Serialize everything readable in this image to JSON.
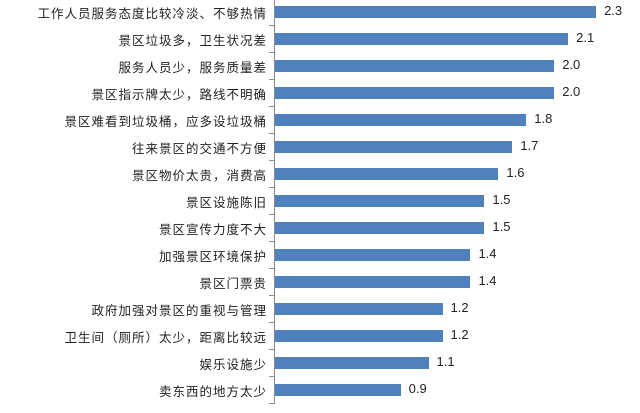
{
  "chart_data": {
    "type": "bar",
    "orientation": "horizontal",
    "title": "",
    "xlabel": "",
    "ylabel": "",
    "bar_color": "#4f81bd",
    "grid": false,
    "legend": null,
    "xlim": [
      0,
      2.5
    ],
    "categories": [
      "工作人员服务态度比较冷淡、不够热情",
      "景区垃圾多，卫生状况差",
      "服务人员少，服务质量差",
      "景区指示牌太少，路线不明确",
      "景区难看到垃圾桶，应多设垃圾桶",
      "往来景区的交通不方便",
      "景区物价太贵，消费高",
      "景区设施陈旧",
      "景区宣传力度不大",
      "加强景区环境保护",
      "景区门票贵",
      "政府加强对景区的重视与管理",
      "卫生间（厕所）太少，距离比较远",
      "娱乐设施少",
      "卖东西的地方太少"
    ],
    "values": [
      2.3,
      2.1,
      2.0,
      2.0,
      1.8,
      1.7,
      1.6,
      1.5,
      1.5,
      1.4,
      1.4,
      1.2,
      1.2,
      1.1,
      0.9
    ],
    "value_labels": [
      "2.3",
      "2.1",
      "2.0",
      "2.0",
      "1.8",
      "1.7",
      "1.6",
      "1.5",
      "1.5",
      "1.4",
      "1.4",
      "1.2",
      "1.2",
      "1.1",
      "0.9"
    ]
  }
}
